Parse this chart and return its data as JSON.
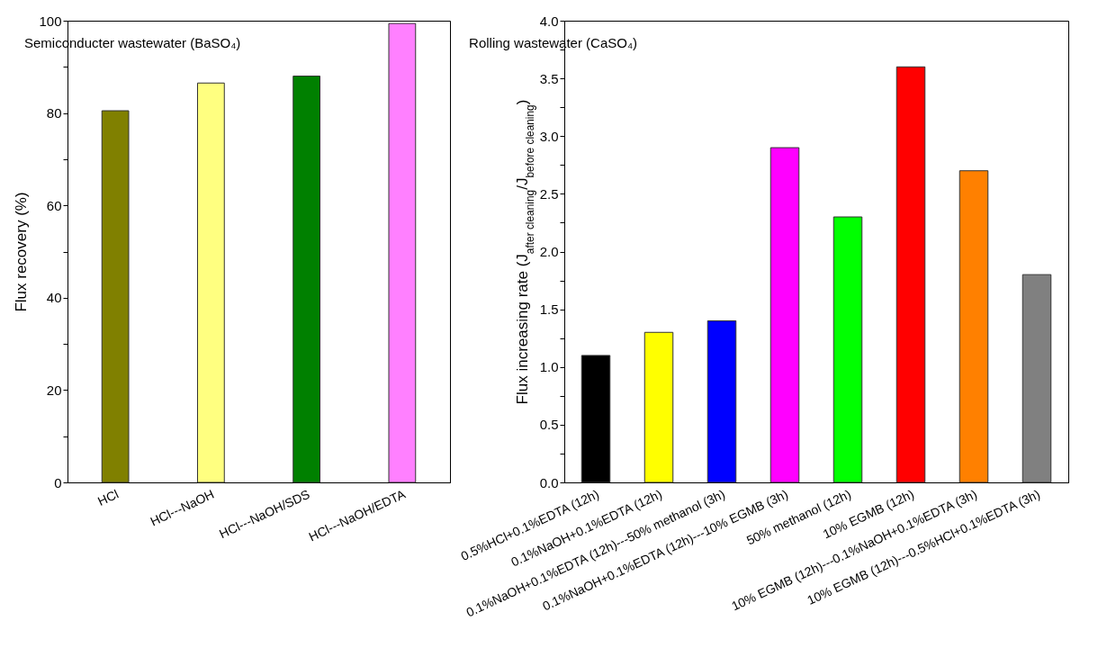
{
  "chart_data": [
    {
      "type": "bar",
      "title": "Semiconducter wastewater (BaSO₄)",
      "ylabel": "Flux recovery (%)",
      "categories": [
        "HCl",
        "HCl---NaOH",
        "HCl---NaOH/SDS",
        "HCl---NaOH/EDTA"
      ],
      "values": [
        80.5,
        86.5,
        88,
        99.4
      ],
      "colors": [
        "#808000",
        "#ffff80",
        "#008000",
        "#ff80ff"
      ],
      "ylim": [
        0,
        100
      ],
      "yticks": [
        0,
        {
          "value": 10,
          "label": null
        },
        20,
        {
          "value": 30,
          "label": null
        },
        40,
        {
          "value": 50,
          "label": null
        },
        60,
        {
          "value": 70,
          "label": null
        },
        80,
        {
          "value": 90,
          "label": null
        },
        100
      ],
      "grid": false
    },
    {
      "type": "bar",
      "title": "Rolling wastewater (CaSO₄)",
      "ylabel": "Flux increasing rate (J$_{after cleaning}$/J$_{before cleaning}$)",
      "categories": [
        "0.5%HCl+0.1%EDTA (12h)",
        "0.1%NaOH+0.1%EDTA (12h)",
        "0.1%NaOH+0.1%EDTA (12h)---50% methanol (3h)",
        "0.1%NaOH+0.1%EDTA (12h)---10% EGMB (3h)",
        "50% methanol (12h)",
        "10% EGMB (12h)",
        "10% EGMB (12h)---0.1%NaOH+0.1%EDTA (3h)",
        "10% EGMB (12h)---0.5%HCl+0.1%EDTA (3h)"
      ],
      "values": [
        1.1,
        1.3,
        1.4,
        2.9,
        2.3,
        3.6,
        2.7,
        1.8
      ],
      "colors": [
        "#000000",
        "#ffff00",
        "#0000ff",
        "#ff00ff",
        "#00ff00",
        "#ff0000",
        "#ff8000",
        "#808080"
      ],
      "ylim": [
        0,
        4
      ],
      "yticks": [
        {
          "value": 0,
          "label": "0.0"
        },
        {
          "value": 0.25,
          "label": null
        },
        0.5,
        {
          "value": 0.75,
          "label": null
        },
        {
          "value": 1,
          "label": "1.0"
        },
        {
          "value": 1.25,
          "label": null
        },
        1.5,
        {
          "value": 1.75,
          "label": null
        },
        {
          "value": 2,
          "label": "2.0"
        },
        {
          "value": 2.25,
          "label": null
        },
        2.5,
        {
          "value": 2.75,
          "label": null
        },
        {
          "value": 3,
          "label": "3.0"
        },
        {
          "value": 3.25,
          "label": null
        },
        3.5,
        {
          "value": 3.75,
          "label": null
        },
        {
          "value": 4,
          "label": "4.0"
        }
      ],
      "grid": false
    }
  ]
}
